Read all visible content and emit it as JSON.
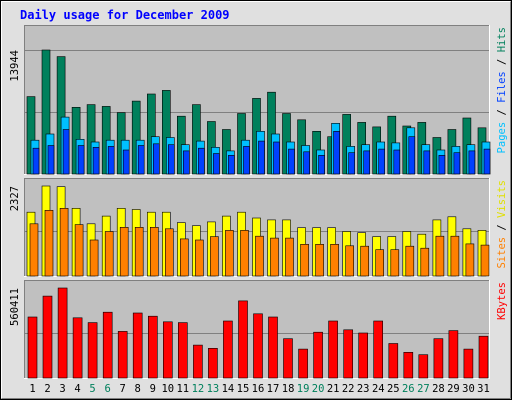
{
  "chart_data": [
    {
      "type": "bar",
      "title": "Daily usage for December 2009",
      "categories": [
        "1",
        "2",
        "3",
        "4",
        "5",
        "6",
        "7",
        "8",
        "9",
        "10",
        "11",
        "12",
        "13",
        "14",
        "15",
        "16",
        "17",
        "18",
        "19",
        "20",
        "21",
        "22",
        "23",
        "24",
        "25",
        "26",
        "27",
        "28",
        "29",
        "30",
        "31"
      ],
      "weekend_days": [
        "5",
        "6",
        "12",
        "13",
        "19",
        "20",
        "26",
        "27"
      ],
      "max_label": "13944",
      "ylim": [
        0,
        13944
      ],
      "legend": [
        "Pages",
        "Files",
        "Hits"
      ],
      "series": [
        {
          "name": "Hits",
          "color": "#00805c",
          "values": [
            8700,
            13944,
            13200,
            7500,
            7800,
            7600,
            6900,
            8200,
            9000,
            9400,
            6500,
            7800,
            5900,
            5000,
            6800,
            8500,
            9200,
            6800,
            6100,
            4800,
            4200,
            6700,
            5800,
            5300,
            6500,
            5400,
            5800,
            4100,
            5000,
            6300,
            5200
          ]
        },
        {
          "name": "Files",
          "color": "#00c0ff",
          "values": [
            3800,
            4500,
            6400,
            3900,
            3600,
            3800,
            3800,
            3800,
            4200,
            4100,
            3300,
            3700,
            3000,
            2600,
            3800,
            4800,
            4500,
            3600,
            3200,
            2700,
            5700,
            3100,
            3300,
            3600,
            3500,
            5200,
            3300,
            2700,
            3100,
            3300,
            3600
          ]
        },
        {
          "name": "Pages",
          "color": "#0040ff",
          "values": [
            2900,
            3200,
            5000,
            3200,
            3000,
            3100,
            2700,
            3200,
            3400,
            3300,
            2600,
            2900,
            2300,
            2100,
            3100,
            3700,
            3600,
            2800,
            2500,
            2100,
            4800,
            2400,
            2600,
            2800,
            2700,
            4200,
            2600,
            2100,
            2400,
            2600,
            2800
          ]
        }
      ]
    },
    {
      "type": "bar",
      "max_label": "2327",
      "ylim": [
        0,
        2327
      ],
      "legend": [
        "Sites",
        "Visits"
      ],
      "series": [
        {
          "name": "Visits",
          "color": "#ffff00",
          "values": [
            1650,
            2327,
            2310,
            1750,
            1350,
            1550,
            1750,
            1720,
            1650,
            1650,
            1380,
            1300,
            1400,
            1550,
            1650,
            1500,
            1450,
            1450,
            1250,
            1250,
            1250,
            1150,
            1120,
            1020,
            1020,
            1150,
            1080,
            1450,
            1530,
            1220,
            1180
          ]
        },
        {
          "name": "Sites",
          "color": "#ff8000",
          "values": [
            1350,
            1700,
            1750,
            1330,
            930,
            1150,
            1260,
            1260,
            1260,
            1220,
            960,
            930,
            1020,
            1180,
            1180,
            1030,
            980,
            980,
            820,
            820,
            820,
            780,
            770,
            680,
            680,
            770,
            720,
            1030,
            1030,
            830,
            800
          ]
        }
      ]
    },
    {
      "type": "bar",
      "max_label": "560411",
      "ylim": [
        0,
        560411
      ],
      "legend": [
        "KBytes"
      ],
      "series": [
        {
          "name": "KBytes",
          "color": "#ff0000",
          "values": [
            380000,
            510000,
            560411,
            375000,
            345000,
            410000,
            290000,
            405000,
            385000,
            350000,
            345000,
            205000,
            185000,
            355000,
            480000,
            400000,
            380000,
            245000,
            180000,
            285000,
            355000,
            300000,
            280000,
            355000,
            215000,
            160000,
            145000,
            245000,
            295000,
            180000,
            260000
          ]
        }
      ]
    }
  ],
  "colors": {
    "weekday_label": "#000000",
    "weekend_label": "#00805c",
    "title": "#0000ff",
    "panel_bg": "#c0c0c0",
    "frame_bg": "#e0e0e0"
  }
}
